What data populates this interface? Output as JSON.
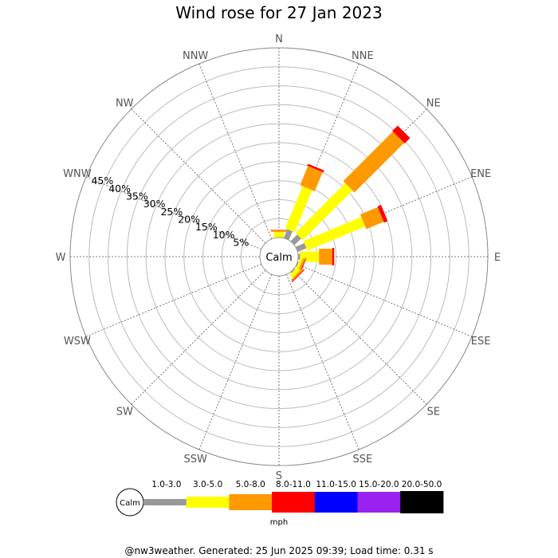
{
  "chart_data": {
    "type": "windrose",
    "title": "Wind rose for 27 Jan 2023",
    "directions": [
      "N",
      "NNE",
      "NE",
      "ENE",
      "E",
      "ESE",
      "SE",
      "SSE",
      "S",
      "SSW",
      "SW",
      "WSW",
      "W",
      "WNW",
      "NW",
      "NNW"
    ],
    "radial_ticks": [
      "5%",
      "10%",
      "15%",
      "20%",
      "25%",
      "30%",
      "35%",
      "40%",
      "45%"
    ],
    "radial_max_percent": 50,
    "calm_label": "Calm",
    "speed_bins": [
      {
        "label": "1.0-3.0",
        "color": "#999999"
      },
      {
        "label": "3.0-5.0",
        "color": "#ffff00"
      },
      {
        "label": "5.0-8.0",
        "color": "#ff9900"
      },
      {
        "label": "8.0-11.0",
        "color": "#ff0000"
      },
      {
        "label": "11.0-15.0",
        "color": "#0000ff"
      },
      {
        "label": "15.0-20.0",
        "color": "#9922ee"
      },
      {
        "label": "20.0-50.0",
        "color": "#000000"
      }
    ],
    "unit": "mph",
    "series": [
      {
        "direction": "N",
        "cumulative": [
          0.0,
          1.5,
          1.9,
          2.0
        ]
      },
      {
        "direction": "NNE",
        "cumulative": [
          2.5,
          14.5,
          20.0,
          20.5
        ]
      },
      {
        "direction": "NE",
        "cumulative": [
          2.5,
          21.0,
          39.5,
          41.5
        ]
      },
      {
        "direction": "ENE",
        "cumulative": [
          2.5,
          19.0,
          24.0,
          25.0
        ]
      },
      {
        "direction": "E",
        "cumulative": [
          0.5,
          5.5,
          9.0,
          9.5
        ]
      },
      {
        "direction": "ESE",
        "cumulative": [
          0.3,
          1.0,
          1.6,
          1.8
        ]
      },
      {
        "direction": "SE",
        "cumulative": [
          0.3,
          1.5,
          2.0,
          2.2
        ]
      }
    ]
  },
  "footer": "@nw3weather. Generated: 25 Jun 2025 09:39; Load time: 0.31 s"
}
